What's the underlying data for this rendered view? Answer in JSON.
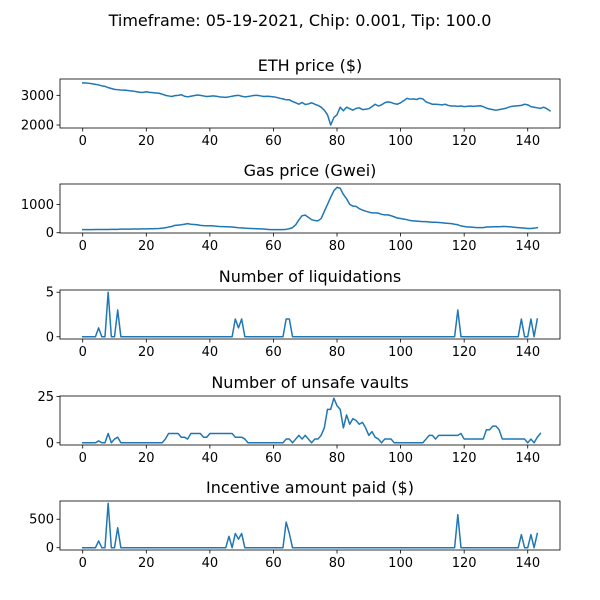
{
  "figure": {
    "suptitle": "Timeframe: 05-19-2021, Chip: 0.001, Tip: 100.0"
  },
  "line_color": "#1f77b4",
  "chart_data": [
    {
      "type": "line",
      "title": "ETH price ($)",
      "xlabel": "",
      "ylabel": "",
      "xlim": [
        -7.15,
        150.15
      ],
      "ylim": [
        1900,
        3550
      ],
      "xticks": [
        0,
        20,
        40,
        60,
        80,
        100,
        120,
        140
      ],
      "yticks": [
        2000,
        3000
      ],
      "grid": false,
      "series": [
        {
          "values": [
            3420,
            3415,
            3405,
            3390,
            3370,
            3350,
            3320,
            3300,
            3260,
            3230,
            3200,
            3190,
            3180,
            3175,
            3165,
            3150,
            3140,
            3120,
            3100,
            3100,
            3120,
            3100,
            3090,
            3080,
            3070,
            3040,
            3000,
            2980,
            2960,
            2990,
            3000,
            3020,
            2970,
            2950,
            2970,
            2990,
            3010,
            3000,
            2980,
            2960,
            2970,
            2980,
            2970,
            2950,
            2940,
            2930,
            2950,
            2970,
            2990,
            3000,
            2970,
            2950,
            2960,
            2980,
            3000,
            3000,
            2980,
            2960,
            2970,
            2960,
            2950,
            2930,
            2900,
            2880,
            2850,
            2850,
            2790,
            2750,
            2700,
            2760,
            2690,
            2710,
            2750,
            2700,
            2660,
            2600,
            2500,
            2350,
            2000,
            2250,
            2350,
            2600,
            2480,
            2600,
            2550,
            2500,
            2560,
            2580,
            2520,
            2530,
            2550,
            2620,
            2700,
            2640,
            2680,
            2750,
            2780,
            2760,
            2720,
            2700,
            2750,
            2820,
            2900,
            2870,
            2880,
            2860,
            2900,
            2880,
            2780,
            2740,
            2700,
            2700,
            2690,
            2680,
            2700,
            2660,
            2640,
            2640,
            2630,
            2640,
            2620,
            2630,
            2640,
            2630,
            2640,
            2650,
            2620,
            2570,
            2540,
            2520,
            2500,
            2520,
            2540,
            2560,
            2600,
            2630,
            2640,
            2650,
            2660,
            2700,
            2680,
            2620,
            2600,
            2580,
            2560,
            2600,
            2550,
            2480
          ]
        }
      ]
    },
    {
      "type": "line",
      "title": "Gas price (Gwei)",
      "xlabel": "",
      "ylabel": "",
      "xlim": [
        -7.15,
        150.15
      ],
      "ylim": [
        -10,
        1720
      ],
      "xticks": [
        0,
        20,
        40,
        60,
        80,
        100,
        120,
        140
      ],
      "yticks": [
        0,
        1000
      ],
      "grid": false,
      "series": [
        {
          "values": [
            110,
            110,
            110,
            110,
            115,
            115,
            115,
            115,
            115,
            120,
            120,
            120,
            125,
            125,
            125,
            125,
            130,
            130,
            130,
            135,
            135,
            140,
            140,
            145,
            150,
            160,
            175,
            200,
            220,
            260,
            270,
            280,
            300,
            320,
            300,
            290,
            280,
            260,
            250,
            245,
            245,
            240,
            230,
            220,
            215,
            210,
            205,
            200,
            190,
            175,
            170,
            160,
            155,
            150,
            145,
            140,
            135,
            130,
            120,
            110,
            110,
            110,
            110,
            110,
            120,
            140,
            180,
            280,
            450,
            600,
            620,
            540,
            460,
            430,
            420,
            500,
            750,
            1000,
            1250,
            1480,
            1600,
            1570,
            1350,
            1200,
            1000,
            940,
            930,
            850,
            800,
            760,
            730,
            700,
            700,
            690,
            650,
            630,
            630,
            600,
            560,
            520,
            500,
            480,
            460,
            430,
            420,
            410,
            400,
            390,
            390,
            380,
            370,
            370,
            360,
            350,
            340,
            330,
            320,
            300,
            280,
            240,
            220,
            200,
            200,
            190,
            180,
            180,
            180,
            200,
            200,
            210,
            210,
            210,
            220,
            220,
            210,
            200,
            190,
            180,
            170,
            160,
            150,
            150,
            160,
            180
          ]
        }
      ]
    },
    {
      "type": "line",
      "title": "Number of liquidations",
      "xlabel": "",
      "ylabel": "",
      "xlim": [
        -7.15,
        150.15
      ],
      "ylim": [
        -0.25,
        5.25
      ],
      "xticks": [
        0,
        20,
        40,
        60,
        80,
        100,
        120,
        140
      ],
      "yticks": [
        0,
        5
      ],
      "grid": false,
      "series": [
        {
          "values": [
            0,
            0,
            0,
            0,
            0,
            1,
            0,
            0,
            5,
            0,
            0,
            3,
            0,
            0,
            0,
            0,
            0,
            0,
            0,
            0,
            0,
            0,
            0,
            0,
            0,
            0,
            0,
            0,
            0,
            0,
            0,
            0,
            0,
            0,
            0,
            0,
            0,
            0,
            0,
            0,
            0,
            0,
            0,
            0,
            0,
            0,
            0,
            0,
            2,
            1,
            2,
            0,
            0,
            0,
            0,
            0,
            0,
            0,
            0,
            0,
            0,
            0,
            0,
            0,
            2,
            2,
            0,
            0,
            0,
            0,
            0,
            0,
            0,
            0,
            0,
            0,
            0,
            0,
            0,
            0,
            0,
            0,
            0,
            0,
            0,
            0,
            0,
            0,
            0,
            0,
            0,
            0,
            0,
            0,
            0,
            0,
            0,
            0,
            0,
            0,
            0,
            0,
            0,
            0,
            0,
            0,
            0,
            0,
            0,
            0,
            0,
            0,
            0,
            0,
            0,
            0,
            0,
            0,
            3,
            0,
            0,
            0,
            0,
            0,
            0,
            0,
            0,
            0,
            0,
            0,
            0,
            0,
            0,
            0,
            0,
            0,
            0,
            0,
            2,
            0,
            0,
            2,
            0,
            2
          ]
        }
      ]
    },
    {
      "type": "line",
      "title": "Number of unsafe vaults",
      "xlabel": "",
      "ylabel": "",
      "xlim": [
        -7.15,
        150.15
      ],
      "ylim": [
        -1.2,
        25.2
      ],
      "xticks": [
        0,
        20,
        40,
        60,
        80,
        100,
        120,
        140
      ],
      "yticks": [
        0,
        25
      ],
      "grid": false,
      "series": [
        {
          "values": [
            0,
            0,
            0,
            0,
            0,
            1,
            0,
            0,
            5,
            0,
            2,
            3,
            0,
            0,
            0,
            0,
            0,
            0,
            0,
            0,
            0,
            0,
            0,
            0,
            0,
            0,
            2,
            5,
            5,
            5,
            5,
            3,
            3,
            2,
            5,
            5,
            5,
            5,
            3,
            3,
            5,
            5,
            5,
            5,
            5,
            5,
            5,
            5,
            3,
            3,
            3,
            2,
            0,
            0,
            0,
            0,
            0,
            0,
            0,
            0,
            0,
            0,
            0,
            0,
            2,
            2,
            0,
            2,
            4,
            2,
            4,
            2,
            0,
            2,
            2,
            4,
            8,
            18,
            18,
            24,
            20,
            18,
            8,
            15,
            10,
            13,
            12,
            10,
            11,
            8,
            4,
            6,
            3,
            2,
            0,
            2,
            2,
            2,
            0,
            0,
            0,
            0,
            0,
            0,
            0,
            0,
            0,
            0,
            2,
            4,
            4,
            2,
            4,
            4,
            4,
            4,
            4,
            4,
            4,
            5,
            2,
            2,
            2,
            2,
            2,
            2,
            2,
            7,
            7,
            9,
            9,
            7,
            2,
            2,
            2,
            2,
            2,
            2,
            2,
            2,
            0,
            2,
            0,
            3,
            5
          ]
        }
      ]
    },
    {
      "type": "line",
      "title": "Incentive amount paid ($)",
      "xlabel": "",
      "ylabel": "",
      "xlim": [
        -7.15,
        150.15
      ],
      "ylim": [
        -40,
        820
      ],
      "xticks": [
        0,
        20,
        40,
        60,
        80,
        100,
        120,
        140
      ],
      "yticks": [
        0,
        500
      ],
      "grid": false,
      "series": [
        {
          "values": [
            0,
            0,
            0,
            0,
            0,
            120,
            0,
            0,
            780,
            0,
            0,
            350,
            0,
            0,
            0,
            0,
            0,
            0,
            0,
            0,
            0,
            0,
            0,
            0,
            0,
            0,
            0,
            0,
            0,
            0,
            0,
            0,
            0,
            0,
            0,
            0,
            0,
            0,
            0,
            0,
            0,
            0,
            0,
            0,
            0,
            0,
            200,
            0,
            250,
            150,
            250,
            0,
            0,
            0,
            0,
            0,
            0,
            0,
            0,
            0,
            0,
            0,
            0,
            0,
            450,
            250,
            0,
            0,
            0,
            0,
            0,
            0,
            0,
            0,
            0,
            0,
            0,
            0,
            0,
            0,
            0,
            0,
            0,
            0,
            0,
            0,
            0,
            0,
            0,
            0,
            0,
            0,
            0,
            0,
            0,
            0,
            0,
            0,
            0,
            0,
            0,
            0,
            0,
            0,
            0,
            0,
            0,
            0,
            0,
            0,
            0,
            0,
            0,
            0,
            0,
            0,
            0,
            0,
            580,
            0,
            0,
            0,
            0,
            0,
            0,
            0,
            0,
            0,
            0,
            0,
            0,
            0,
            0,
            0,
            0,
            0,
            0,
            0,
            230,
            0,
            0,
            230,
            0,
            250
          ]
        }
      ]
    }
  ]
}
